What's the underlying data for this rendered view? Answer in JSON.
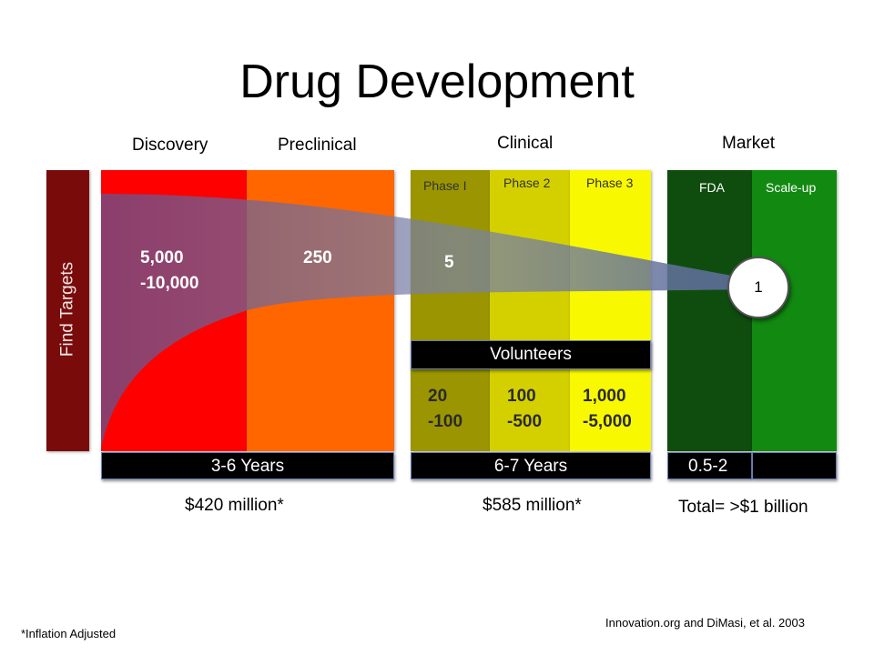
{
  "title": "Drug Development",
  "stages": {
    "discovery": "Discovery",
    "preclinical": "Preclinical",
    "clinical": "Clinical",
    "market": "Market"
  },
  "phases": {
    "phase1": "Phase I",
    "phase2": "Phase 2",
    "phase3": "Phase 3",
    "fda": "FDA",
    "scaleup": "Scale-up"
  },
  "find_targets": "Find Targets",
  "compounds": {
    "discovery": [
      "5,000",
      "-10,000"
    ],
    "preclinical": "250",
    "clinical": "5",
    "market": "1"
  },
  "volunteers": {
    "label": "Volunteers",
    "phase1": [
      "20",
      "-100"
    ],
    "phase2": [
      "100",
      "-500"
    ],
    "phase3": [
      "1,000",
      "-5,000"
    ]
  },
  "durations": {
    "discovery_preclinical": "3-6 Years",
    "clinical": "6-7 Years",
    "market": "0.5-2",
    "market_extra": ""
  },
  "costs": {
    "discovery_preclinical": "$420 million*",
    "clinical": "$585 million*",
    "total": "Total= >$1 billion"
  },
  "footnotes": {
    "inflation": "*Inflation Adjusted",
    "source": "Innovation.org and DiMasi, et al. 2003"
  },
  "colors": {
    "find_targets": "#7a0b0b",
    "discovery": "#ff0000",
    "preclinical": "#ff6600",
    "phase1": "#9a9500",
    "phase2": "#d4d000",
    "phase3": "#f8f800",
    "fda": "#0f4d0f",
    "scaleup": "#128a12",
    "funnel": "#6a5a9a"
  }
}
